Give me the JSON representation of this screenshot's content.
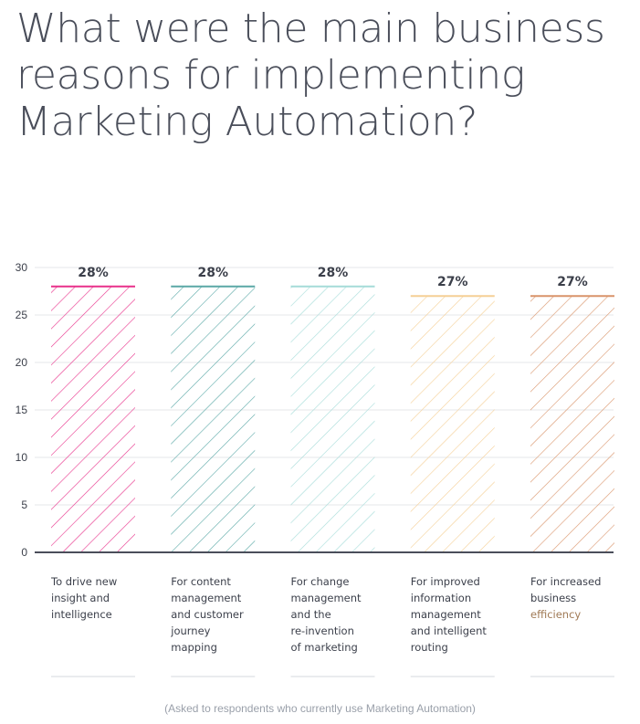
{
  "title_lines": [
    "What were the main business",
    "reasons for implementing",
    "Marketing Automation?"
  ],
  "footnote": "(Asked to respondents who currently use Marketing Automation)",
  "chart_data": {
    "type": "bar",
    "title": "What were the main business reasons for implementing Marketing Automation?",
    "categories": [
      [
        "To drive new",
        "insight and",
        "intelligence"
      ],
      [
        "For content",
        "management",
        "and customer",
        "journey",
        "mapping"
      ],
      [
        "For change",
        "management",
        "and the",
        "re-invention",
        "of marketing"
      ],
      [
        "For improved",
        "information",
        "management",
        "and intelligent",
        "routing"
      ],
      [
        "For increased",
        "business",
        "efficiency"
      ]
    ],
    "values": [
      28,
      28,
      28,
      27,
      27
    ],
    "data_labels": [
      "28%",
      "28%",
      "28%",
      "27%",
      "27%"
    ],
    "colors": [
      "#e8308a",
      "#5aa8a6",
      "#a5dcd8",
      "#f5cf95",
      "#d9946a"
    ],
    "yticks": [
      "0",
      "5",
      "10",
      "15",
      "20",
      "25",
      "30"
    ],
    "ylim": [
      0,
      30
    ],
    "grid": true,
    "legend": "none"
  }
}
